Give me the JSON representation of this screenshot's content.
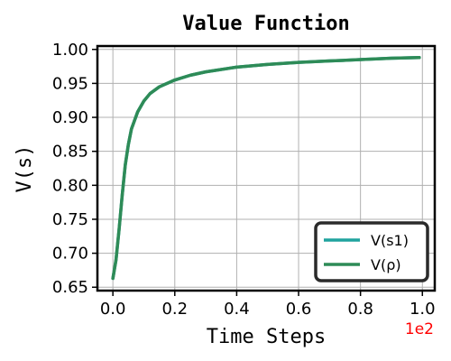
{
  "chart_data": {
    "type": "line",
    "title": "Value Function",
    "xlabel": "Time Steps",
    "ylabel": "V(s)",
    "x_offset_label": "1e2",
    "xlim": [
      -0.05,
      1.04
    ],
    "ylim": [
      0.645,
      1.005
    ],
    "x_ticks": [
      0.0,
      0.2,
      0.4,
      0.6,
      0.8,
      1.0
    ],
    "x_tick_labels": [
      "0.0",
      "0.2",
      "0.4",
      "0.6",
      "0.8",
      "1.0"
    ],
    "y_ticks": [
      0.65,
      0.7,
      0.75,
      0.8,
      0.85,
      0.9,
      0.95,
      1.0
    ],
    "y_tick_labels": [
      "0.65",
      "0.70",
      "0.75",
      "0.80",
      "0.85",
      "0.90",
      "0.95",
      "1.00"
    ],
    "grid": true,
    "legend_position": "bottom-right",
    "series": [
      {
        "name": "V(s1)",
        "color": "#20a39e",
        "x": [
          0.0,
          0.01,
          0.02,
          0.03,
          0.04,
          0.05,
          0.06,
          0.08,
          0.1,
          0.12,
          0.15,
          0.2,
          0.25,
          0.3,
          0.4,
          0.5,
          0.6,
          0.7,
          0.8,
          0.9,
          0.99
        ],
        "y": [
          0.663,
          0.69,
          0.735,
          0.785,
          0.83,
          0.86,
          0.883,
          0.908,
          0.924,
          0.935,
          0.945,
          0.955,
          0.962,
          0.967,
          0.974,
          0.978,
          0.981,
          0.983,
          0.985,
          0.987,
          0.988
        ]
      },
      {
        "name": "V(ρ)",
        "color": "#2e8b57",
        "x": [
          0.0,
          0.01,
          0.02,
          0.03,
          0.04,
          0.05,
          0.06,
          0.08,
          0.1,
          0.12,
          0.15,
          0.2,
          0.25,
          0.3,
          0.4,
          0.5,
          0.6,
          0.7,
          0.8,
          0.9,
          0.99
        ],
        "y": [
          0.663,
          0.69,
          0.735,
          0.785,
          0.83,
          0.86,
          0.883,
          0.908,
          0.924,
          0.935,
          0.945,
          0.955,
          0.962,
          0.967,
          0.974,
          0.978,
          0.981,
          0.983,
          0.985,
          0.987,
          0.988
        ]
      }
    ]
  }
}
